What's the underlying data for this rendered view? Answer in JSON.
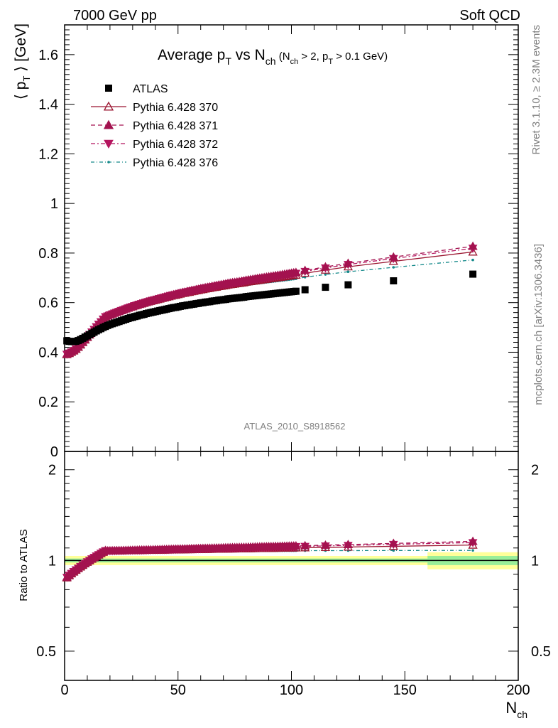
{
  "header": {
    "left": "7000 GeV pp",
    "right": "Soft QCD"
  },
  "side": {
    "rivet": "Rivet 3.1.10, ≥ 2.3M events",
    "mcplots": "mcplots.cern.ch [arXiv:1306.3436]"
  },
  "title": {
    "main_pre": "Average p",
    "main_sub": "T",
    "main_mid": " vs N",
    "main_sub2": "ch",
    "cond_a": " (N",
    "cond_a_sub": "ch",
    "cond_b": " > 2, p",
    "cond_b_sub": "T",
    "cond_c": " > 0.1 GeV)"
  },
  "watermark": "ATLAS_2010_S8918562",
  "colors": {
    "data": "#000000",
    "mc370": "#9b1530",
    "mc371": "#a3124f",
    "mc372": "#b5155f",
    "mc376": "#14898a",
    "band_yellow": "#ffff99",
    "band_green": "#99ee99"
  },
  "chart_data": {
    "type": "scatter",
    "xlabel": "N",
    "xlabel_sub": "ch",
    "ylabel_main": "⟨ p",
    "ylabel_sub": "T",
    "ylabel_tail": " ⟩ [GeV]",
    "ratio_ylabel": "Ratio to ATLAS",
    "xlim": [
      0,
      200
    ],
    "ylim": [
      0,
      1.72
    ],
    "ratio_ylim": [
      0.4,
      2.3
    ],
    "x_ticks": [
      "0",
      "50",
      "100",
      "150",
      "200"
    ],
    "y_ticks": [
      "0",
      "0.2",
      "0.4",
      "0.6",
      "0.8",
      "1",
      "1.2",
      "1.4",
      "1.6"
    ],
    "ratio_ticks": [
      "0.5",
      "1",
      "2"
    ],
    "legend": [
      {
        "label": "ATLAS",
        "style": "data"
      },
      {
        "label": "Pythia 6.428 370",
        "style": "mc370"
      },
      {
        "label": "Pythia 6.428 371",
        "style": "mc371"
      },
      {
        "label": "Pythia 6.428 372",
        "style": "mc372"
      },
      {
        "label": "Pythia 6.428 376",
        "style": "mc376"
      }
    ],
    "data_x": [
      1,
      2,
      3,
      4,
      5,
      6,
      7,
      8,
      9,
      10,
      11,
      12,
      13,
      14,
      15,
      16,
      17,
      18,
      19,
      20,
      21,
      22,
      23,
      24,
      25,
      26,
      27,
      28,
      29,
      30,
      31,
      32,
      33,
      34,
      35,
      36,
      37,
      38,
      39,
      40,
      41,
      42,
      43,
      44,
      45,
      46,
      47,
      48,
      49,
      50,
      51,
      52,
      53,
      54,
      55,
      56,
      57,
      58,
      59,
      60,
      61,
      62,
      63,
      64,
      65,
      66,
      67,
      68,
      69,
      70,
      71,
      72,
      73,
      74,
      75,
      76,
      77,
      78,
      79,
      80,
      81,
      82,
      83,
      84,
      85,
      86,
      87,
      88,
      89,
      90,
      91,
      92,
      93,
      94,
      95,
      96,
      97,
      98,
      99,
      100,
      101,
      102,
      106,
      115,
      125,
      145,
      180
    ],
    "data_y": [
      0.446,
      0.444,
      0.443,
      0.443,
      0.444,
      0.447,
      0.451,
      0.456,
      0.461,
      0.466,
      0.471,
      0.476,
      0.481,
      0.486,
      0.491,
      0.495,
      0.5,
      0.504,
      0.508,
      0.512,
      0.515,
      0.518,
      0.521,
      0.524,
      0.527,
      0.53,
      0.533,
      0.536,
      0.539,
      0.541,
      0.544,
      0.546,
      0.549,
      0.551,
      0.553,
      0.556,
      0.558,
      0.56,
      0.562,
      0.564,
      0.566,
      0.568,
      0.57,
      0.572,
      0.574,
      0.576,
      0.578,
      0.58,
      0.581,
      0.583,
      0.585,
      0.587,
      0.588,
      0.59,
      0.591,
      0.593,
      0.594,
      0.596,
      0.597,
      0.599,
      0.6,
      0.602,
      0.603,
      0.604,
      0.606,
      0.607,
      0.608,
      0.61,
      0.611,
      0.612,
      0.613,
      0.615,
      0.616,
      0.617,
      0.618,
      0.619,
      0.62,
      0.621,
      0.622,
      0.624,
      0.625,
      0.626,
      0.627,
      0.628,
      0.629,
      0.63,
      0.631,
      0.632,
      0.633,
      0.634,
      0.635,
      0.636,
      0.637,
      0.638,
      0.639,
      0.64,
      0.641,
      0.642,
      0.643,
      0.644,
      0.645,
      0.646,
      0.652,
      0.662,
      0.672,
      0.688,
      0.715
    ],
    "series": [
      {
        "name": "Pythia 6.428 370",
        "color": "#9b1530",
        "marker": "triangle-open",
        "dash": "",
        "ratio_end": 1.125
      },
      {
        "name": "Pythia 6.428 371",
        "color": "#a3124f",
        "marker": "triangle-up",
        "dash": "6,4",
        "ratio_end": 1.145
      },
      {
        "name": "Pythia 6.428 372",
        "color": "#b5155f",
        "marker": "triangle-down",
        "dash": "6,3,2,3",
        "ratio_end": 1.138
      },
      {
        "name": "Pythia 6.428 376",
        "color": "#14898a",
        "marker": "dot",
        "dash": "5,3,1,3",
        "ratio_end": 1.095
      }
    ],
    "ratio_band": {
      "value": 1.0,
      "yellow_halfwidth": 0.035,
      "green_halfwidth": 0.015,
      "wide_from": 160,
      "wide_yellow": 0.065,
      "wide_green": 0.035
    }
  }
}
